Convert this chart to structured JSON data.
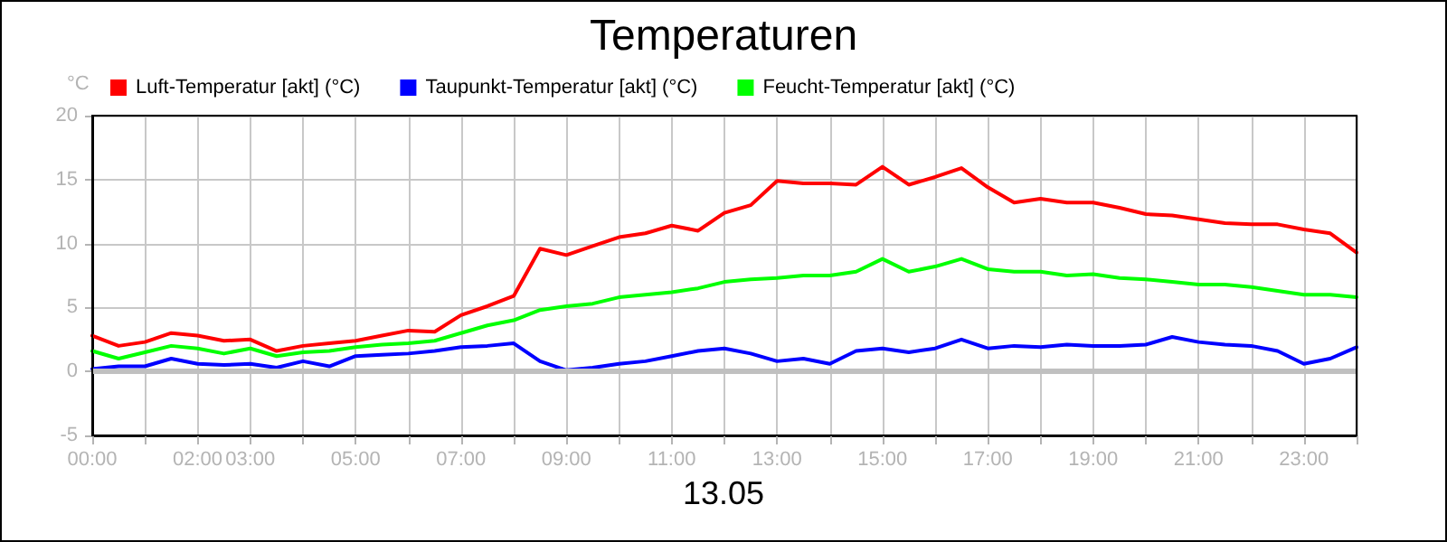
{
  "chart_data": {
    "type": "line",
    "title": "Temperaturen",
    "xlabel": "13.05",
    "ylabel": "°C",
    "x": [
      0,
      0.5,
      1,
      1.5,
      2,
      2.5,
      3,
      3.5,
      4,
      4.5,
      5,
      5.5,
      6,
      6.5,
      7,
      7.5,
      8,
      8.5,
      9,
      9.5,
      10,
      10.5,
      11,
      11.5,
      12,
      12.5,
      13,
      13.5,
      14,
      14.5,
      15,
      15.5,
      16,
      16.5,
      17,
      17.5,
      18,
      18.5,
      19,
      19.5,
      20,
      20.5,
      21,
      21.5,
      22,
      22.5,
      23,
      23.5,
      24
    ],
    "series": [
      {
        "name": "Luft-Temperatur [akt] (°C)",
        "color": "#ff0000",
        "values": [
          2.8,
          2.0,
          2.3,
          3.0,
          2.8,
          2.4,
          2.5,
          1.6,
          2.0,
          2.2,
          2.4,
          2.8,
          3.2,
          3.1,
          4.4,
          5.1,
          5.9,
          9.6,
          9.1,
          9.8,
          10.5,
          10.8,
          11.4,
          11.0,
          12.4,
          13.0,
          14.9,
          14.7,
          14.7,
          14.6,
          16.0,
          14.6,
          15.2,
          15.9,
          14.4,
          13.2,
          13.5,
          13.2,
          13.2,
          12.8,
          12.3,
          12.2,
          11.9,
          11.6,
          11.5,
          11.5,
          11.1,
          10.8,
          9.3
        ]
      },
      {
        "name": "Taupunkt-Temperatur [akt] (°C)",
        "color": "#0000ff",
        "values": [
          0.2,
          0.4,
          0.4,
          1.0,
          0.6,
          0.5,
          0.6,
          0.3,
          0.8,
          0.4,
          1.2,
          1.3,
          1.4,
          1.6,
          1.9,
          2.0,
          2.2,
          0.8,
          0.1,
          0.3,
          0.6,
          0.8,
          1.2,
          1.6,
          1.8,
          1.4,
          0.8,
          1.0,
          0.6,
          1.6,
          1.8,
          1.5,
          1.8,
          2.5,
          1.8,
          2.0,
          1.9,
          2.1,
          2.0,
          2.0,
          2.1,
          2.7,
          2.3,
          2.1,
          2.0,
          1.6,
          0.6,
          1.0,
          1.9
        ]
      },
      {
        "name": "Feucht-Temperatur [akt] (°C)",
        "color": "#00ff00",
        "values": [
          1.6,
          1.0,
          1.5,
          2.0,
          1.8,
          1.4,
          1.8,
          1.2,
          1.5,
          1.6,
          1.9,
          2.1,
          2.2,
          2.4,
          3.0,
          3.6,
          4.0,
          4.8,
          5.1,
          5.3,
          5.8,
          6.0,
          6.2,
          6.5,
          7.0,
          7.2,
          7.3,
          7.5,
          7.5,
          7.8,
          8.8,
          7.8,
          8.2,
          8.8,
          8.0,
          7.8,
          7.8,
          7.5,
          7.6,
          7.3,
          7.2,
          7.0,
          6.8,
          6.8,
          6.6,
          6.3,
          6.0,
          6.0,
          5.8
        ]
      }
    ],
    "xlim": [
      0,
      24
    ],
    "xticks": [
      {
        "value": 0,
        "label": "00:00"
      },
      {
        "value": 1,
        "label": null
      },
      {
        "value": 2,
        "label": "02:00"
      },
      {
        "value": 3,
        "label": "03:00"
      },
      {
        "value": 4,
        "label": null
      },
      {
        "value": 5,
        "label": "05:00"
      },
      {
        "value": 6,
        "label": null
      },
      {
        "value": 7,
        "label": "07:00"
      },
      {
        "value": 8,
        "label": null
      },
      {
        "value": 9,
        "label": "09:00"
      },
      {
        "value": 10,
        "label": null
      },
      {
        "value": 11,
        "label": "11:00"
      },
      {
        "value": 12,
        "label": null
      },
      {
        "value": 13,
        "label": "13:00"
      },
      {
        "value": 14,
        "label": null
      },
      {
        "value": 15,
        "label": "15:00"
      },
      {
        "value": 16,
        "label": null
      },
      {
        "value": 17,
        "label": "17:00"
      },
      {
        "value": 18,
        "label": null
      },
      {
        "value": 19,
        "label": "19:00"
      },
      {
        "value": 20,
        "label": null
      },
      {
        "value": 21,
        "label": "21:00"
      },
      {
        "value": 22,
        "label": null
      },
      {
        "value": 23,
        "label": "23:00"
      },
      {
        "value": 24,
        "label": null
      }
    ],
    "ylim": [
      -5,
      20
    ],
    "yticks": [
      -5,
      0,
      5,
      10,
      15,
      20
    ],
    "ref_lines": [
      {
        "axis": "y",
        "value": 0,
        "color": "#c0c0c0"
      }
    ],
    "grid": true,
    "legend": "top left",
    "marker": "none",
    "line_style": "solid"
  }
}
